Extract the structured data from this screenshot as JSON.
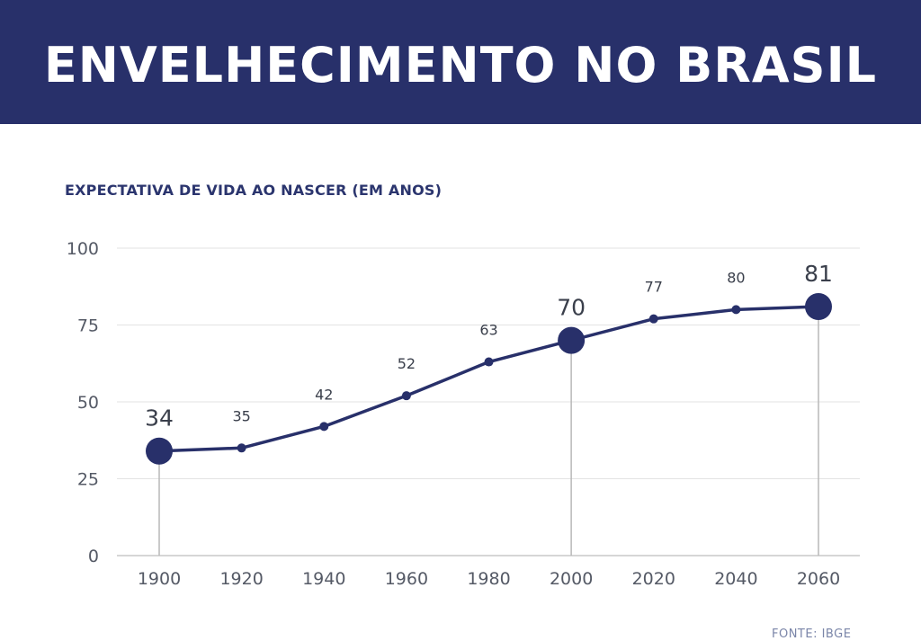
{
  "header": {
    "title": "ENVELHECIMENTO NO BRASIL",
    "background": "#28306a"
  },
  "footer": {
    "source": "FONTE: IBGE"
  },
  "chart_data": {
    "type": "line",
    "title": "ENVELHECIMENTO NO BRASIL",
    "subtitle": "EXPECTATIVA DE VIDA AO NASCER (EM ANOS)",
    "xlabel": "",
    "ylabel": "",
    "x": [
      1900,
      1920,
      1940,
      1960,
      1980,
      2000,
      2020,
      2040,
      2060
    ],
    "series": [
      {
        "values": [
          34,
          35,
          42,
          52,
          63,
          70,
          77,
          80,
          81
        ],
        "color": "#28306a"
      }
    ],
    "highlighted_x": [
      1900,
      2000,
      2060
    ],
    "ylim": [
      0,
      100
    ],
    "yticks": [
      0,
      25,
      50,
      75,
      100
    ],
    "grid": true,
    "colors": {
      "line": "#28306a",
      "grid": "#e3e3e3",
      "drop_line": "#b8b8b8",
      "axis": "#c8c8c8"
    }
  }
}
